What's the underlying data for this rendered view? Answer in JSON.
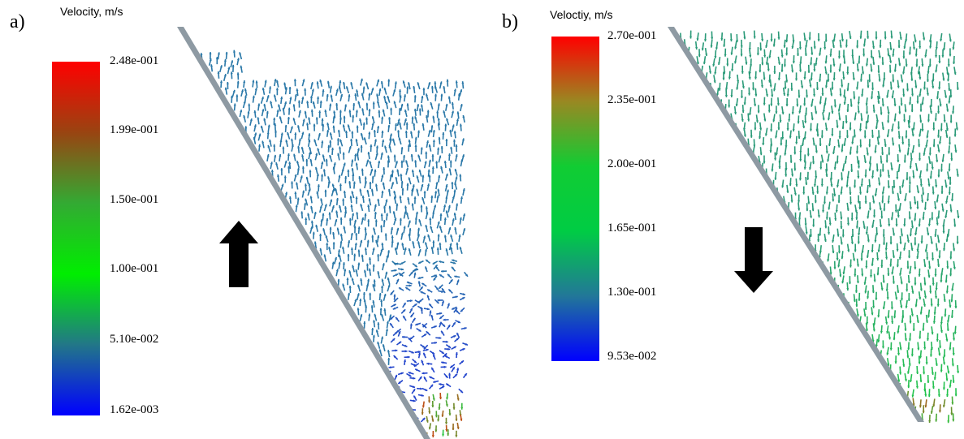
{
  "panels": [
    {
      "label": "a)",
      "colorbar": {
        "title": "Velocity, m/s",
        "ticks": [
          "2.48e-001",
          "1.99e-001",
          "1.50e-001",
          "1.00e-001",
          "5.10e-002",
          "1.62e-003"
        ],
        "colors": [
          "#ff0000",
          "#994411",
          "#33aa33",
          "#00ee00",
          "#227788",
          "#0000ff"
        ]
      },
      "flow_direction": "up"
    },
    {
      "label": "b)",
      "colorbar": {
        "title": "Veloctiy, m/s",
        "ticks": [
          "2.70e-001",
          "2.35e-001",
          "2.00e-001",
          "1.65e-001",
          "1.30e-001",
          "9.53e-002"
        ],
        "colors": [
          "#ff0000",
          "#998822",
          "#11cc33",
          "#00cc44",
          "#227799",
          "#0000ff"
        ]
      },
      "flow_direction": "down"
    }
  ],
  "colors": {
    "wall": "#8e9aa3",
    "arrow_a_main": "#2a78a8",
    "arrow_a_low": "#2244cc",
    "arrow_b_main": "#2a9a78",
    "arrow_b_low": "#22cc44",
    "direction_arrow": "#000000"
  }
}
